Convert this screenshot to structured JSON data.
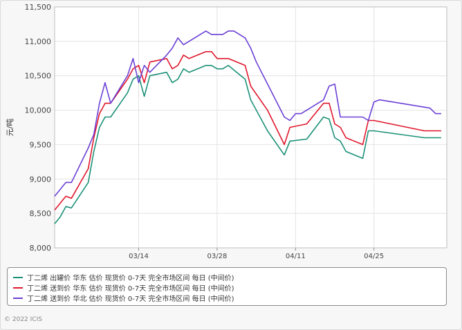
{
  "chart_data": {
    "type": "line",
    "ylabel": "元/吨",
    "ylim": [
      8000,
      11500
    ],
    "yticks": [
      "8,000",
      "8,500",
      "9,000",
      "9,500",
      "10,000",
      "10,500",
      "11,000",
      "11,500"
    ],
    "xlim": [
      "02/27",
      "05/08"
    ],
    "xticks": [
      "03/14",
      "03/28",
      "04/11",
      "04/25"
    ],
    "grid": "both",
    "legend_position": "bottom",
    "series": [
      {
        "name": "丁二烯 出罐价 华东 估价 现货价 0-7天 完全市场区间 每日 (中间价)",
        "color": "#1a9076",
        "points": [
          [
            "02/27",
            8350
          ],
          [
            "02/28",
            8450
          ],
          [
            "03/01",
            8600
          ],
          [
            "03/02",
            8580
          ],
          [
            "03/05",
            8950
          ],
          [
            "03/06",
            9400
          ],
          [
            "03/07",
            9750
          ],
          [
            "03/08",
            9900
          ],
          [
            "03/09",
            9900
          ],
          [
            "03/12",
            10250
          ],
          [
            "03/13",
            10450
          ],
          [
            "03/14",
            10500
          ],
          [
            "03/15",
            10200
          ],
          [
            "03/16",
            10500
          ],
          [
            "03/19",
            10550
          ],
          [
            "03/20",
            10400
          ],
          [
            "03/21",
            10450
          ],
          [
            "03/22",
            10600
          ],
          [
            "03/23",
            10550
          ],
          [
            "03/26",
            10650
          ],
          [
            "03/27",
            10650
          ],
          [
            "03/28",
            10600
          ],
          [
            "03/29",
            10600
          ],
          [
            "03/30",
            10650
          ],
          [
            "04/02",
            10450
          ],
          [
            "04/03",
            10150
          ],
          [
            "04/06",
            9700
          ],
          [
            "04/09",
            9350
          ],
          [
            "04/10",
            9550
          ],
          [
            "04/13",
            9580
          ],
          [
            "04/16",
            9900
          ],
          [
            "04/17",
            9870
          ],
          [
            "04/18",
            9600
          ],
          [
            "04/19",
            9550
          ],
          [
            "04/20",
            9400
          ],
          [
            "04/23",
            9300
          ],
          [
            "04/24",
            9700
          ],
          [
            "04/25",
            9700
          ],
          [
            "05/04",
            9600
          ],
          [
            "05/07",
            9600
          ]
        ]
      },
      {
        "name": "丁二烯 送到价 华东 估价 现货价 0-7天 完全市场区间 每日 (中间价)",
        "color": "#e0162b",
        "points": [
          [
            "02/27",
            8550
          ],
          [
            "03/01",
            8750
          ],
          [
            "03/02",
            8720
          ],
          [
            "03/05",
            9150
          ],
          [
            "03/06",
            9600
          ],
          [
            "03/07",
            9950
          ],
          [
            "03/08",
            10100
          ],
          [
            "03/09",
            10100
          ],
          [
            "03/12",
            10450
          ],
          [
            "03/13",
            10600
          ],
          [
            "03/14",
            10650
          ],
          [
            "03/15",
            10400
          ],
          [
            "03/16",
            10700
          ],
          [
            "03/19",
            10750
          ],
          [
            "03/20",
            10600
          ],
          [
            "03/21",
            10650
          ],
          [
            "03/22",
            10800
          ],
          [
            "03/23",
            10750
          ],
          [
            "03/26",
            10850
          ],
          [
            "03/27",
            10850
          ],
          [
            "03/28",
            10750
          ],
          [
            "03/29",
            10750
          ],
          [
            "03/30",
            10750
          ],
          [
            "04/02",
            10650
          ],
          [
            "04/03",
            10350
          ],
          [
            "04/06",
            10000
          ],
          [
            "04/09",
            9500
          ],
          [
            "04/10",
            9750
          ],
          [
            "04/13",
            9800
          ],
          [
            "04/16",
            10100
          ],
          [
            "04/17",
            10100
          ],
          [
            "04/18",
            9800
          ],
          [
            "04/19",
            9750
          ],
          [
            "04/20",
            9600
          ],
          [
            "04/23",
            9500
          ],
          [
            "04/24",
            9850
          ],
          [
            "04/25",
            9850
          ],
          [
            "05/04",
            9700
          ],
          [
            "05/07",
            9700
          ]
        ]
      },
      {
        "name": "丁二烯 送到价 华北 估价 现货价 0-7天 完全市场区间 每日 (中间价)",
        "color": "#6a3fd6",
        "points": [
          [
            "02/27",
            8750
          ],
          [
            "03/01",
            8950
          ],
          [
            "03/02",
            8950
          ],
          [
            "03/05",
            9450
          ],
          [
            "03/06",
            9650
          ],
          [
            "03/07",
            10100
          ],
          [
            "03/08",
            10400
          ],
          [
            "03/09",
            10100
          ],
          [
            "03/12",
            10500
          ],
          [
            "03/13",
            10750
          ],
          [
            "03/14",
            10400
          ],
          [
            "03/15",
            10650
          ],
          [
            "03/16",
            10550
          ],
          [
            "03/19",
            10800
          ],
          [
            "03/20",
            10900
          ],
          [
            "03/21",
            11050
          ],
          [
            "03/22",
            10950
          ],
          [
            "03/26",
            11150
          ],
          [
            "03/27",
            11100
          ],
          [
            "03/28",
            11100
          ],
          [
            "03/29",
            11100
          ],
          [
            "03/30",
            11150
          ],
          [
            "03/31",
            11150
          ],
          [
            "04/02",
            11050
          ],
          [
            "04/03",
            10900
          ],
          [
            "04/04",
            10700
          ],
          [
            "04/09",
            9900
          ],
          [
            "04/10",
            9850
          ],
          [
            "04/11",
            9950
          ],
          [
            "04/12",
            9950
          ],
          [
            "04/16",
            10150
          ],
          [
            "04/17",
            10350
          ],
          [
            "04/18",
            10380
          ],
          [
            "04/19",
            9900
          ],
          [
            "04/23",
            9900
          ],
          [
            "04/24",
            9850
          ],
          [
            "04/25",
            10120
          ],
          [
            "04/26",
            10150
          ],
          [
            "05/05",
            10030
          ],
          [
            "05/06",
            9950
          ],
          [
            "05/07",
            9950
          ]
        ]
      }
    ]
  },
  "footer": {
    "copyright": "© 2022 ICIS"
  }
}
